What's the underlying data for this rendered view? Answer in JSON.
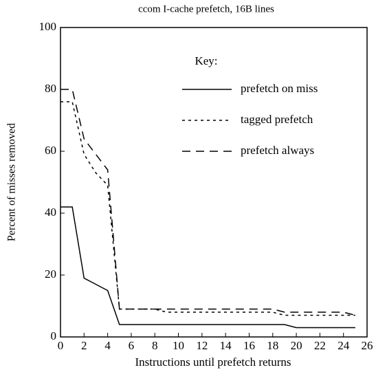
{
  "chart_data": {
    "type": "line",
    "title": "ccom I-cache prefetch, 16B lines",
    "xlabel": "Instructions until prefetch returns",
    "ylabel": "Percent of misses removed",
    "legend_title": "Key:",
    "legend": "upper right",
    "x": [
      0,
      1,
      2,
      3,
      4,
      5,
      6,
      7,
      8,
      9,
      10,
      11,
      12,
      13,
      14,
      15,
      16,
      17,
      18,
      19,
      20,
      21,
      22,
      23,
      24,
      25
    ],
    "series": [
      {
        "name": "prefetch on miss",
        "color": "#000000",
        "dash": "solid",
        "values": [
          42,
          42,
          19,
          17,
          15,
          4,
          4,
          4,
          4,
          4,
          4,
          4,
          4,
          4,
          4,
          4,
          4,
          4,
          4,
          4,
          3,
          3,
          3,
          3,
          3,
          3
        ]
      },
      {
        "name": "tagged prefetch",
        "color": "#000000",
        "dash": "dotted",
        "values": [
          76,
          76,
          59,
          53,
          49,
          9,
          9,
          9,
          9,
          8,
          8,
          8,
          8,
          8,
          8,
          8,
          8,
          8,
          8,
          7,
          7,
          7,
          7,
          7,
          7,
          7
        ]
      },
      {
        "name": "prefetch always",
        "color": "#000000",
        "dash": "dashed",
        "values": [
          80,
          80,
          64,
          59,
          54,
          9,
          9,
          9,
          9,
          9,
          9,
          9,
          9,
          9,
          9,
          9,
          9,
          9,
          9,
          8,
          8,
          8,
          8,
          8,
          8,
          7
        ]
      }
    ],
    "xlim": [
      0,
      26
    ],
    "xticks": [
      0,
      2,
      4,
      6,
      8,
      10,
      12,
      14,
      16,
      18,
      20,
      22,
      24,
      26
    ],
    "ylim": [
      0,
      100
    ],
    "yticks": [
      0,
      20,
      40,
      60,
      80,
      100
    ],
    "grid": false
  }
}
